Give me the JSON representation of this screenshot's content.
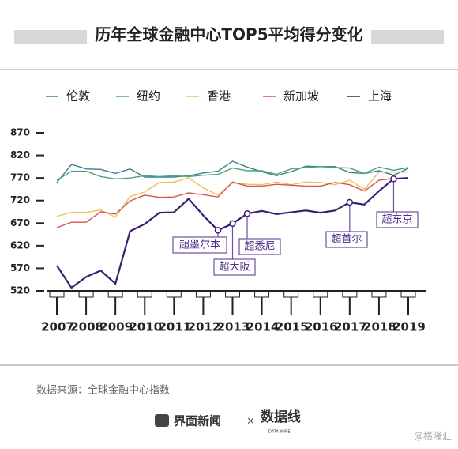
{
  "chart_data": {
    "type": "line",
    "title": "历年全球金融中心TOP5平均得分变化",
    "x": [
      2007,
      2007.5,
      2008,
      2008.5,
      2009,
      2009.5,
      2010,
      2010.5,
      2011,
      2011.5,
      2012,
      2012.5,
      2013,
      2013.5,
      2014,
      2014.5,
      2015,
      2015.5,
      2016,
      2016.5,
      2017,
      2017.5,
      2018,
      2018.5,
      2019
    ],
    "xlim": [
      2007,
      2019
    ],
    "xticks": [
      2007,
      2008,
      2009,
      2010,
      2011,
      2012,
      2013,
      2014,
      2015,
      2016,
      2017,
      2018,
      2019
    ],
    "ylim": [
      520,
      870
    ],
    "yticks": [
      520,
      570,
      620,
      670,
      720,
      770,
      820,
      870
    ],
    "series": [
      {
        "name": "伦敦",
        "color": "#3a7f8f",
        "values": [
          760,
          800,
          790,
          789,
          780,
          790,
          772,
          772,
          772,
          775,
          781,
          785,
          807,
          794,
          784,
          775,
          784,
          796,
          795,
          795,
          782,
          780,
          786,
          776,
          791
        ]
      },
      {
        "name": "纽约",
        "color": "#4fa37a",
        "values": [
          765,
          785,
          785,
          773,
          768,
          770,
          775,
          773,
          775,
          773,
          776,
          778,
          792,
          786,
          786,
          778,
          790,
          793,
          795,
          793,
          792,
          780,
          794,
          787,
          793
        ]
      },
      {
        "name": "香港",
        "color": "#e9c25a",
        "values": [
          685,
          694,
          694,
          699,
          683,
          729,
          739,
          760,
          761,
          770,
          748,
          732,
          759,
          756,
          755,
          761,
          755,
          761,
          760,
          755,
          765,
          745,
          783,
          783,
          783
        ]
      },
      {
        "name": "新加坡",
        "color": "#d9534f",
        "values": [
          660,
          672,
          672,
          695,
          690,
          719,
          732,
          727,
          728,
          737,
          733,
          728,
          761,
          752,
          752,
          756,
          754,
          752,
          752,
          760,
          755,
          741,
          765,
          769,
          769
        ]
      },
      {
        "name": "上海",
        "color": "#3b1f6e",
        "values": [
          576,
          527,
          551,
          565,
          536,
          652,
          668,
          693,
          694,
          724,
          687,
          654,
          669,
          691,
          697,
          690,
          694,
          698,
          693,
          698,
          716,
          711,
          741,
          768,
          770
        ]
      }
    ],
    "annotations": [
      "超墨尔本",
      "超大阪",
      "超悉尼",
      "超首尔",
      "超东京"
    ],
    "source": "数据来源：全球金融中心指数",
    "footer": {
      "brand": "界面新闻",
      "cross": "×",
      "partner": "数据线",
      "partner_sub": "DATA WIRE",
      "credit": "@格隆汇"
    }
  }
}
